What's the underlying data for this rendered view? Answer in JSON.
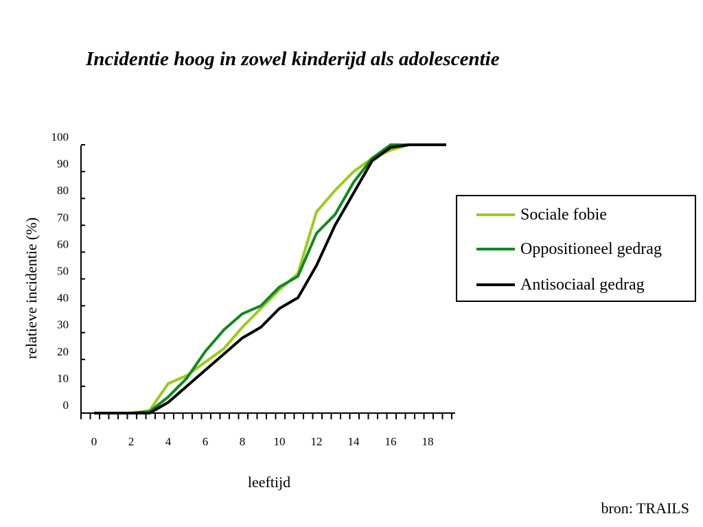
{
  "page": {
    "title": "Incidentie hoog in zowel kinderijd als adolescentie",
    "source": "bron: TRAILS"
  },
  "chart_data": {
    "type": "line",
    "title": "Incidentie hoog in zowel kinderijd als adolescentie",
    "xlabel": "leeftijd",
    "ylabel": "relatieve incidentie (%)",
    "xlim": [
      0,
      19.5
    ],
    "ylim": [
      0,
      100
    ],
    "x_tick_labels": [
      "0",
      "2",
      "4",
      "6",
      "8",
      "10",
      "12",
      "14",
      "16",
      "18"
    ],
    "y_tick_labels": [
      "0",
      "10",
      "20",
      "30",
      "40",
      "50",
      "60",
      "70",
      "80",
      "90",
      "100"
    ],
    "grid": false,
    "legend_position": "right",
    "x": [
      0,
      1,
      2,
      3,
      4,
      5,
      6,
      7,
      8,
      9,
      10,
      11,
      12,
      13,
      14,
      15,
      16,
      17,
      18,
      19
    ],
    "series": [
      {
        "name": "Sociale fobie",
        "color": "#99cc1a",
        "values": [
          0,
          0,
          0,
          1,
          11,
          14,
          19,
          24,
          32,
          39,
          46,
          52,
          75,
          83,
          90,
          95,
          98,
          100,
          100,
          100
        ]
      },
      {
        "name": "Oppositioneel gedrag",
        "color": "#0f8a1e",
        "values": [
          0,
          0,
          0,
          0.5,
          6,
          13,
          23,
          31,
          37,
          40,
          47,
          51,
          67,
          74,
          86,
          95,
          100,
          100,
          100,
          100
        ]
      },
      {
        "name": "Antisociaal gedrag",
        "color": "#000000",
        "values": [
          0,
          0,
          0,
          0,
          4,
          10,
          16,
          22,
          28,
          32,
          39,
          43,
          55,
          70,
          82,
          94,
          99,
          100,
          100,
          100
        ]
      }
    ]
  }
}
